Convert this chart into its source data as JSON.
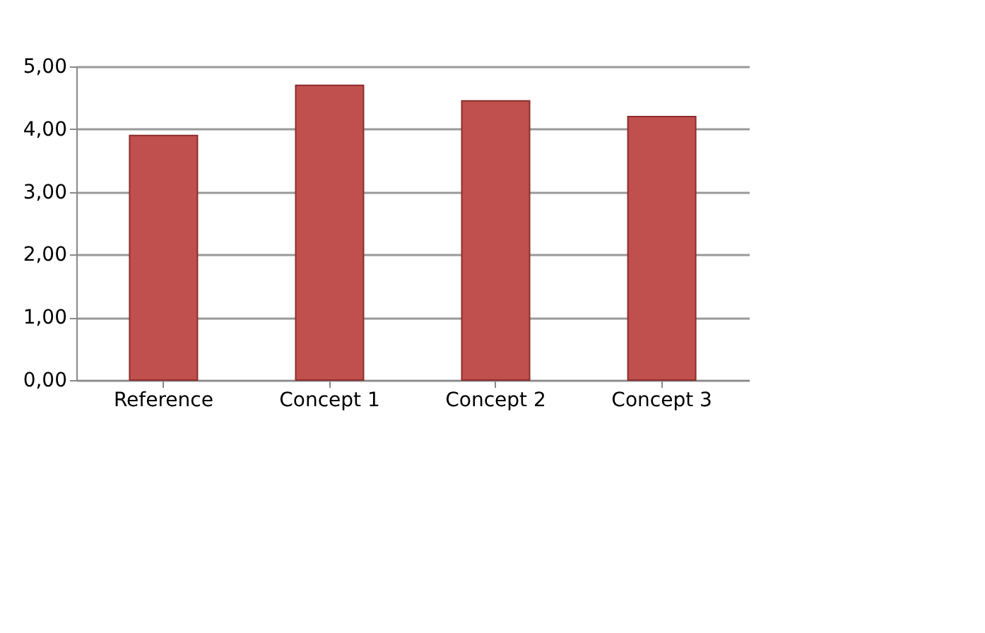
{
  "chart_data": {
    "type": "bar",
    "categories": [
      "Reference",
      "Concept 1",
      "Concept 2",
      "Concept 3"
    ],
    "values": [
      3.9,
      4.7,
      4.45,
      4.2
    ],
    "color": "#c0504d",
    "ylim": [
      0,
      5
    ],
    "yticks": [
      {
        "value": 0,
        "label": "0,00"
      },
      {
        "value": 1,
        "label": "1,00"
      },
      {
        "value": 2,
        "label": "2,00"
      },
      {
        "value": 3,
        "label": "3,00"
      },
      {
        "value": 4,
        "label": "4,00"
      },
      {
        "value": 5,
        "label": "5,00"
      }
    ],
    "grid": "y"
  }
}
